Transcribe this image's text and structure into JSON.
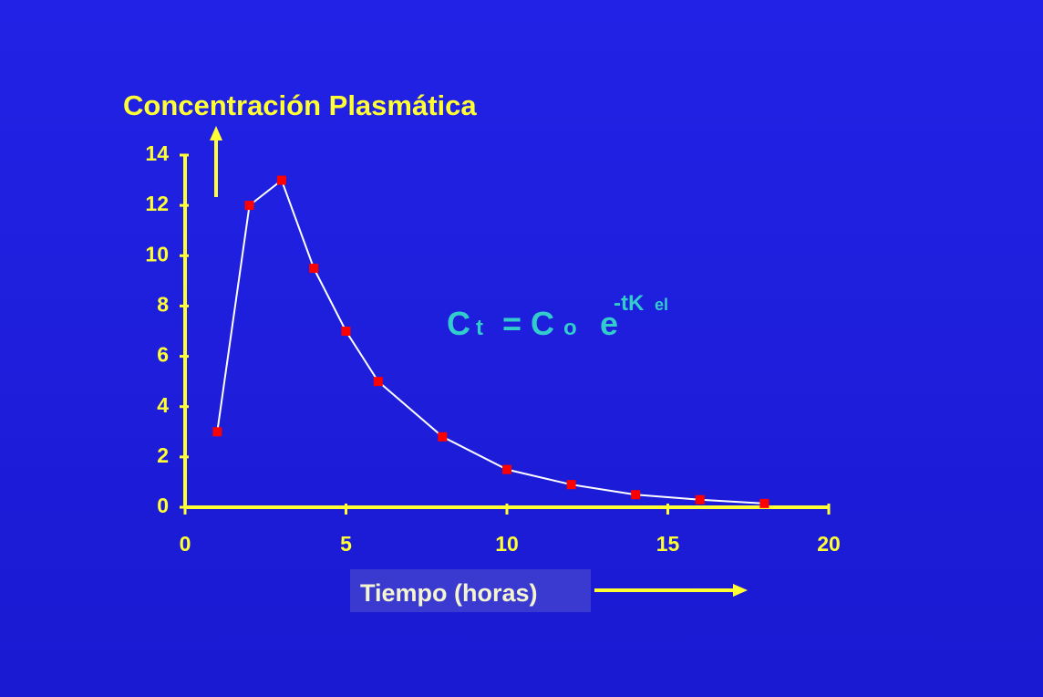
{
  "chart_data": {
    "type": "line",
    "y_label": "Concentración Plasmática",
    "x_label": "Tiempo (horas)",
    "x": [
      1,
      2,
      3,
      4,
      5,
      6,
      8,
      10,
      12,
      14,
      16,
      18
    ],
    "series": [
      {
        "color": "#ffffff",
        "marker_color": "#ff0000",
        "values": [
          3,
          12,
          13,
          9.5,
          7,
          5,
          2.8,
          1.5,
          0.9,
          0.5,
          0.3,
          0.15
        ]
      }
    ],
    "xlim": [
      0,
      20
    ],
    "xticks": [
      0,
      5,
      10,
      15,
      20
    ],
    "ylim": [
      0,
      14
    ],
    "yticks": [
      0,
      2,
      4,
      6,
      8,
      10,
      12,
      14
    ],
    "axis_color": "#ffff33",
    "formula": {
      "lhs": "C",
      "lhs_sub": "t",
      "rhs": "= C",
      "rhs_sub": "o",
      "base": "e",
      "exp": "-tK",
      "exp_sub": "el",
      "color": "#33cccc"
    }
  }
}
